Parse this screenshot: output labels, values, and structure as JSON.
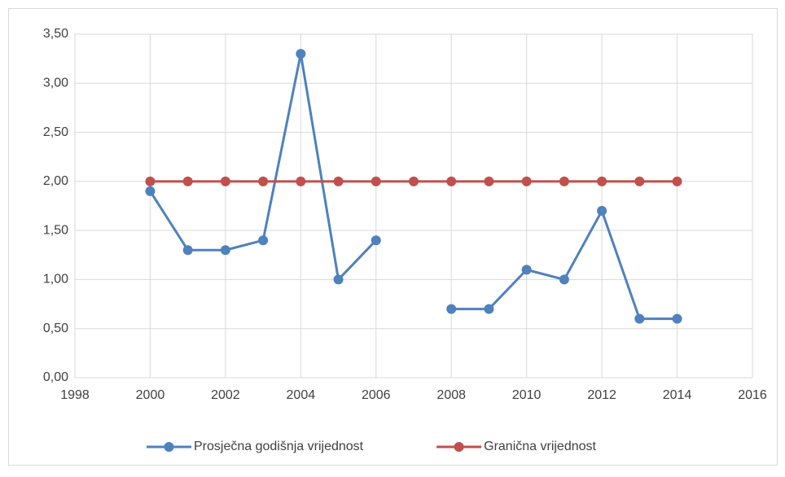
{
  "chart_data": {
    "type": "line",
    "x": [
      2000,
      2001,
      2002,
      2003,
      2004,
      2005,
      2006,
      2007,
      2008,
      2009,
      2010,
      2011,
      2012,
      2013,
      2014
    ],
    "series": [
      {
        "name": "Prosječna godišnja vrijednost",
        "color": "#4f81bd",
        "values": [
          1.9,
          1.3,
          1.3,
          1.4,
          3.3,
          1.0,
          1.4,
          null,
          0.7,
          0.7,
          1.1,
          1.0,
          1.7,
          0.6,
          0.6
        ]
      },
      {
        "name": "Granična vrijednost",
        "color": "#c0504d",
        "values": [
          2.0,
          2.0,
          2.0,
          2.0,
          2.0,
          2.0,
          2.0,
          2.0,
          2.0,
          2.0,
          2.0,
          2.0,
          2.0,
          2.0,
          2.0
        ]
      }
    ],
    "xlim": [
      1998,
      2016
    ],
    "xticks": [
      1998,
      2000,
      2002,
      2004,
      2006,
      2008,
      2010,
      2012,
      2014,
      2016
    ],
    "ylim": [
      0,
      3.5
    ],
    "yticks": [
      {
        "value": 0,
        "label": "0,00"
      },
      {
        "value": 0.5,
        "label": "0,50"
      },
      {
        "value": 1,
        "label": "1,00"
      },
      {
        "value": 1.5,
        "label": "1,50"
      },
      {
        "value": 2,
        "label": "2,00"
      },
      {
        "value": 2.5,
        "label": "2,50"
      },
      {
        "value": 3,
        "label": "3,00"
      },
      {
        "value": 3.5,
        "label": "3,50"
      }
    ],
    "grid": true,
    "legend": "bottom"
  }
}
